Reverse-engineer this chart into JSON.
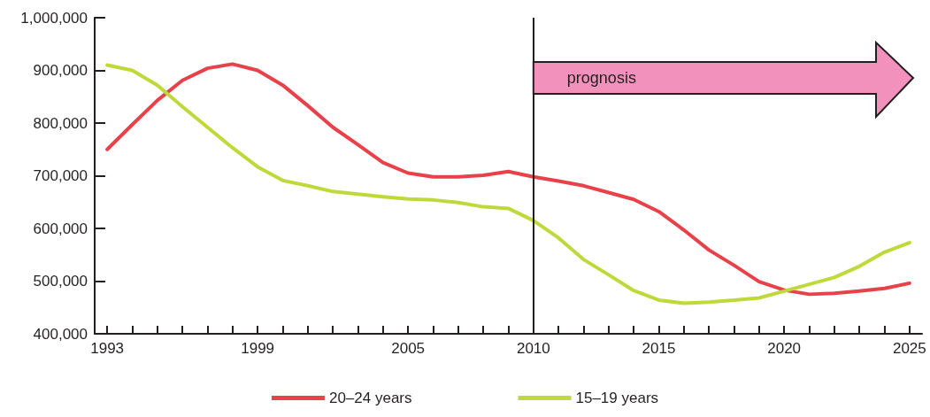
{
  "chart_data": {
    "type": "line",
    "x": [
      1993,
      1994,
      1995,
      1996,
      1997,
      1998,
      1999,
      2000,
      2001,
      2002,
      2003,
      2004,
      2005,
      2006,
      2007,
      2008,
      2009,
      2010,
      2011,
      2012,
      2013,
      2014,
      2015,
      2016,
      2017,
      2018,
      2019,
      2020,
      2021,
      2022,
      2023,
      2024,
      2025
    ],
    "series": [
      {
        "name": "20–24 years",
        "color": "#e8414a",
        "values": [
          750000,
          797000,
          843000,
          881000,
          904000,
          912000,
          900000,
          872000,
          833000,
          792000,
          759000,
          725000,
          705000,
          698000,
          698000,
          701000,
          708000,
          698000,
          690000,
          681000,
          668000,
          655000,
          632000,
          597000,
          559000,
          530000,
          499000,
          483000,
          475000,
          477000,
          481000,
          486000,
          496000
        ]
      },
      {
        "name": "15–19 years",
        "color": "#bfd83a",
        "values": [
          910000,
          900000,
          872000,
          831000,
          792000,
          753000,
          717000,
          691000,
          681000,
          670000,
          665000,
          660000,
          656000,
          654000,
          649000,
          641000,
          638000,
          615000,
          582000,
          541000,
          512000,
          482000,
          464000,
          458000,
          460000,
          464000,
          468000,
          481000,
          494000,
          507000,
          528000,
          555000,
          573000
        ]
      }
    ],
    "xlim": [
      1992.5,
      2025.5
    ],
    "xticks": [
      1993,
      {
        "value": 1994,
        "label": null
      },
      {
        "value": 1995,
        "label": null
      },
      {
        "value": 1996,
        "label": null
      },
      {
        "value": 1997,
        "label": null
      },
      {
        "value": 1998,
        "label": null
      },
      1999,
      {
        "value": 2000,
        "label": null
      },
      {
        "value": 2001,
        "label": null
      },
      {
        "value": 2002,
        "label": null
      },
      {
        "value": 2003,
        "label": null
      },
      {
        "value": 2004,
        "label": null
      },
      2005,
      {
        "value": 2006,
        "label": null
      },
      {
        "value": 2007,
        "label": null
      },
      {
        "value": 2008,
        "label": null
      },
      {
        "value": 2009,
        "label": null
      },
      2010,
      {
        "value": 2011,
        "label": null
      },
      {
        "value": 2012,
        "label": null
      },
      {
        "value": 2013,
        "label": null
      },
      {
        "value": 2014,
        "label": null
      },
      2015,
      {
        "value": 2016,
        "label": null
      },
      {
        "value": 2017,
        "label": null
      },
      {
        "value": 2018,
        "label": null
      },
      {
        "value": 2019,
        "label": null
      },
      2020,
      {
        "value": 2021,
        "label": null
      },
      {
        "value": 2022,
        "label": null
      },
      {
        "value": 2023,
        "label": null
      },
      {
        "value": 2024,
        "label": null
      },
      2025
    ],
    "ylim": [
      400000,
      1000000
    ],
    "yticks": [
      {
        "value": 400000,
        "label": "400,000"
      },
      {
        "value": 500000,
        "label": "500,000"
      },
      {
        "value": 600000,
        "label": "600,000"
      },
      {
        "value": 700000,
        "label": "700,000"
      },
      {
        "value": 800000,
        "label": "800,000"
      },
      {
        "value": 900000,
        "label": "900,000"
      },
      {
        "value": 1000000,
        "label": "1,000,000"
      }
    ],
    "ref_lines": [
      {
        "axis": "x",
        "value": 2010,
        "label": "prognosis",
        "color": "#231f20",
        "line_style": "solid"
      }
    ],
    "grid": false,
    "legend": "bottom",
    "marker": "none",
    "line_style": "solid"
  }
}
